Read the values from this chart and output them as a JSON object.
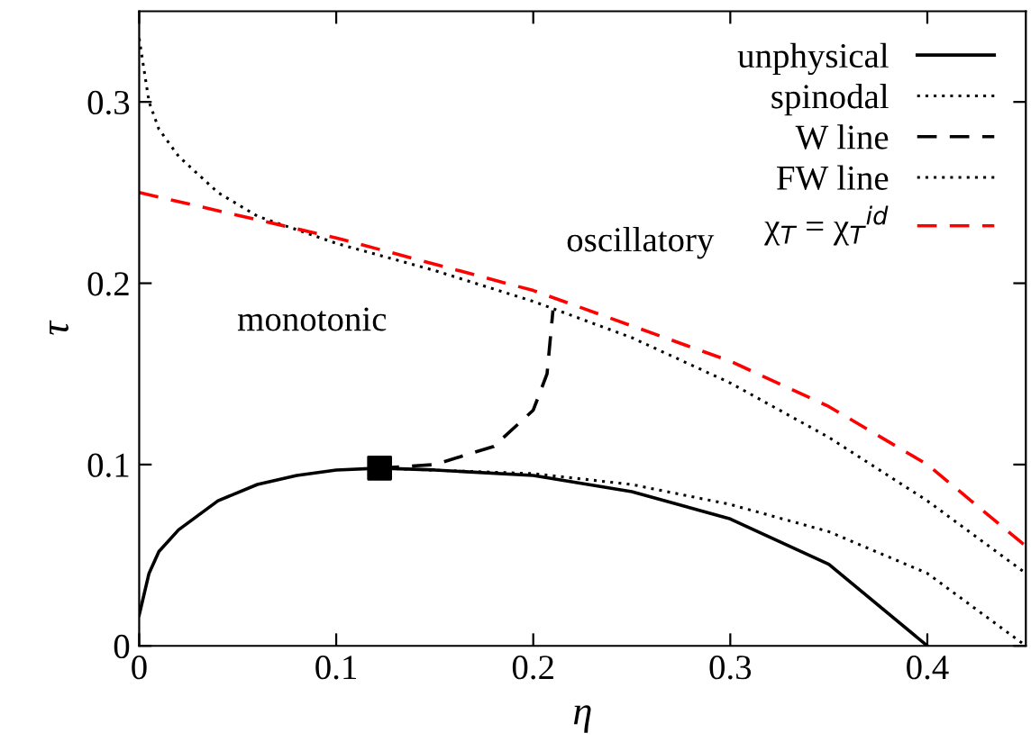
{
  "chart_data": {
    "type": "line",
    "xlabel": "η",
    "ylabel": "τ",
    "xlim": [
      0,
      0.45
    ],
    "ylim": [
      0,
      0.35
    ],
    "xticks": [
      0,
      0.1,
      0.2,
      0.3,
      0.4
    ],
    "yticks": [
      0,
      0.1,
      0.2,
      0.3
    ],
    "grid": false,
    "legend": "top right",
    "series": [
      {
        "name": "unphysical",
        "color": "#000000",
        "line_style": "solid",
        "x": [
          0,
          0.005,
          0.01,
          0.02,
          0.04,
          0.06,
          0.08,
          0.1,
          0.122,
          0.15,
          0.2,
          0.25,
          0.3,
          0.35,
          0.4
        ],
        "values": [
          0.017,
          0.04,
          0.052,
          0.064,
          0.08,
          0.089,
          0.094,
          0.097,
          0.098,
          0.097,
          0.094,
          0.085,
          0.07,
          0.045,
          0.0
        ]
      },
      {
        "name": "spinodal",
        "color": "#000000",
        "line_style": "dotted",
        "x": [
          0.122,
          0.2,
          0.25,
          0.3,
          0.35,
          0.4,
          0.45
        ],
        "values": [
          0.098,
          0.095,
          0.089,
          0.078,
          0.063,
          0.04,
          0.0
        ]
      },
      {
        "name": "W line",
        "color": "#000000",
        "line_style": "dashed",
        "x": [
          0.122,
          0.15,
          0.18,
          0.2,
          0.207,
          0.21
        ],
        "values": [
          0.098,
          0.1,
          0.11,
          0.13,
          0.15,
          0.185
        ]
      },
      {
        "name": "FW line",
        "color": "#000000",
        "line_style": "dotted",
        "x": [
          0,
          0.005,
          0.01,
          0.02,
          0.04,
          0.06,
          0.1,
          0.15,
          0.2,
          0.25,
          0.3,
          0.35,
          0.4,
          0.45
        ],
        "values": [
          0.335,
          0.3,
          0.285,
          0.27,
          0.25,
          0.237,
          0.222,
          0.207,
          0.19,
          0.17,
          0.145,
          0.115,
          0.08,
          0.04
        ]
      },
      {
        "name": "χ$_{T}$ = χ$_{T}$$^{id}$",
        "color": "#ff0000",
        "line_style": "dashed",
        "x": [
          0,
          0.1,
          0.2,
          0.3,
          0.35,
          0.4,
          0.45
        ],
        "values": [
          0.25,
          0.225,
          0.196,
          0.157,
          0.132,
          0.1,
          0.055
        ]
      },
      {
        "type": "scatter",
        "marker": "square",
        "color": "#000000",
        "x": [
          0.122
        ],
        "values": [
          0.098
        ]
      }
    ],
    "annotations": [
      "monotonic",
      "oscillatory"
    ]
  }
}
